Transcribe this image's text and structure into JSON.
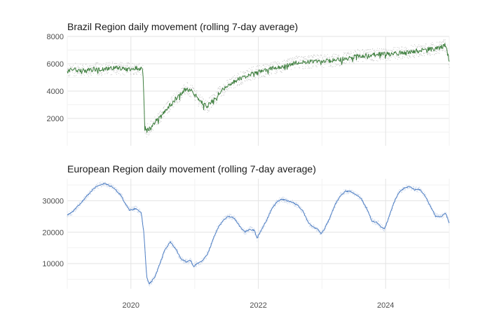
{
  "chart_data": [
    {
      "type": "line",
      "title": "Brazil Region daily movement (rolling 7-day average)",
      "xlabel": "",
      "ylabel": "",
      "xlim": [
        "2019-01-01",
        "2024-12-31"
      ],
      "ylim": [
        0,
        8000
      ],
      "yticks": [
        2000,
        4000,
        6000,
        8000
      ],
      "ytick_labels": [
        "2000",
        "4000",
        "6000",
        "8000"
      ],
      "grid": true,
      "legend": "none",
      "line_color": "#3f7f3f",
      "points_color": "#c4c4c4",
      "series": [
        {
          "x": [
            "2019-01-01",
            "2019-02-01",
            "2019-04-01",
            "2019-06-01",
            "2019-08-01",
            "2019-10-01",
            "2019-12-01",
            "2020-02-01",
            "2020-03-10",
            "2020-03-20",
            "2020-04-01",
            "2020-04-15",
            "2020-05-15",
            "2020-07-01",
            "2020-09-01",
            "2020-10-15",
            "2020-11-15",
            "2020-12-20",
            "2021-01-15",
            "2021-02-15",
            "2021-03-15",
            "2021-04-15",
            "2021-06-01",
            "2021-08-01",
            "2021-10-01",
            "2021-12-01",
            "2022-02-01",
            "2022-04-01",
            "2022-06-01",
            "2022-08-01",
            "2022-10-01",
            "2022-12-01",
            "2023-02-01",
            "2023-04-01",
            "2023-06-01",
            "2023-08-01",
            "2023-10-01",
            "2023-12-01",
            "2024-02-01",
            "2024-04-01",
            "2024-06-01",
            "2024-08-01",
            "2024-10-01",
            "2024-11-15",
            "2024-12-10",
            "2024-12-31"
          ],
          "values": [
            5400,
            5600,
            5500,
            5600,
            5600,
            5700,
            5600,
            5700,
            5600,
            1500,
            1100,
            1200,
            1700,
            2300,
            3300,
            3800,
            4200,
            4000,
            3500,
            3100,
            2900,
            3300,
            4000,
            4600,
            5000,
            5300,
            5500,
            5700,
            5800,
            6100,
            6100,
            6200,
            6200,
            6300,
            6400,
            6600,
            6600,
            6700,
            6700,
            6800,
            6900,
            7000,
            7100,
            7200,
            7400,
            6200
          ]
        }
      ]
    },
    {
      "type": "line",
      "title": "European Region daily movement (rolling 7-day average)",
      "xlabel": "",
      "ylabel": "",
      "xlim": [
        "2019-01-01",
        "2024-12-31"
      ],
      "ylim": [
        2000,
        37000
      ],
      "yticks": [
        10000,
        20000,
        30000
      ],
      "ytick_labels": [
        "10000",
        "20000",
        "30000"
      ],
      "xticks": [
        "2020-01-01",
        "2022-01-01",
        "2024-01-01"
      ],
      "xtick_labels": [
        "2020",
        "2022",
        "2024"
      ],
      "grid": true,
      "legend": "none",
      "line_color": "#4f7fc4",
      "points_color": "#c7d4e8",
      "series": [
        {
          "x": [
            "2019-01-01",
            "2019-02-01",
            "2019-03-15",
            "2019-05-01",
            "2019-06-15",
            "2019-08-01",
            "2019-09-15",
            "2019-11-01",
            "2019-12-01",
            "2019-12-25",
            "2020-02-01",
            "2020-03-01",
            "2020-03-15",
            "2020-04-01",
            "2020-04-15",
            "2020-05-15",
            "2020-06-15",
            "2020-07-15",
            "2020-08-15",
            "2020-09-15",
            "2020-10-15",
            "2020-11-15",
            "2020-12-10",
            "2020-12-25",
            "2021-01-15",
            "2021-02-15",
            "2021-03-15",
            "2021-04-15",
            "2021-05-15",
            "2021-06-15",
            "2021-07-15",
            "2021-08-15",
            "2021-09-15",
            "2021-10-15",
            "2021-11-15",
            "2021-12-10",
            "2021-12-25",
            "2022-01-15",
            "2022-02-15",
            "2022-03-15",
            "2022-04-15",
            "2022-05-15",
            "2022-06-15",
            "2022-07-15",
            "2022-08-15",
            "2022-09-15",
            "2022-10-15",
            "2022-11-15",
            "2022-12-10",
            "2022-12-25",
            "2023-01-15",
            "2023-02-15",
            "2023-03-15",
            "2023-04-15",
            "2023-05-15",
            "2023-06-15",
            "2023-07-15",
            "2023-08-15",
            "2023-09-15",
            "2023-10-15",
            "2023-11-15",
            "2023-12-10",
            "2023-12-25",
            "2024-01-15",
            "2024-02-15",
            "2024-03-15",
            "2024-04-15",
            "2024-05-15",
            "2024-06-15",
            "2024-07-15",
            "2024-08-15",
            "2024-09-15",
            "2024-10-15",
            "2024-11-15",
            "2024-12-10",
            "2024-12-31"
          ],
          "values": [
            25500,
            26500,
            29000,
            32000,
            34500,
            35500,
            34500,
            32000,
            29000,
            27000,
            27500,
            26000,
            20000,
            5500,
            3500,
            5500,
            10000,
            14500,
            17000,
            14500,
            11500,
            10500,
            11000,
            9000,
            10000,
            11000,
            13000,
            17500,
            21500,
            24000,
            25000,
            24500,
            22000,
            20000,
            21000,
            20500,
            18000,
            20500,
            23500,
            27000,
            29500,
            30500,
            30000,
            29500,
            28500,
            26500,
            23000,
            21500,
            21000,
            19500,
            21000,
            24500,
            28500,
            31500,
            33000,
            33000,
            32000,
            30500,
            27500,
            23500,
            23000,
            21500,
            21000,
            24000,
            29000,
            32500,
            34000,
            34500,
            33500,
            33500,
            31500,
            28000,
            25000,
            25000,
            26000,
            23000
          ]
        }
      ]
    }
  ]
}
